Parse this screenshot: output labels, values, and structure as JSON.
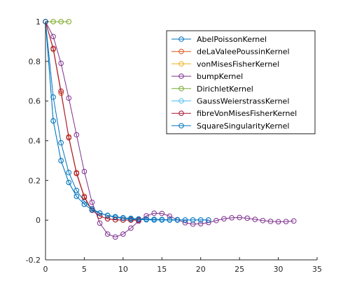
{
  "chart_data": {
    "type": "line",
    "title": "",
    "xlabel": "",
    "ylabel": "",
    "xlim": [
      0,
      35
    ],
    "ylim": [
      -0.2,
      1
    ],
    "xticks": [
      0,
      5,
      10,
      15,
      20,
      25,
      30,
      35
    ],
    "yticks": [
      -0.2,
      0,
      0.2,
      0.4,
      0.6,
      0.8,
      1
    ],
    "xtick_labels": [
      "0",
      "5",
      "10",
      "15",
      "20",
      "25",
      "30",
      "35"
    ],
    "ytick_labels": [
      "-0.2",
      "0",
      "0.2",
      "0.4",
      "0.6",
      "0.8",
      "1"
    ],
    "grid": false,
    "legend_position": "top-right",
    "marker": "open-circle",
    "series": [
      {
        "name": "AbelPoissonKernel",
        "color": "#0072bd",
        "x": [
          0,
          1,
          2,
          3,
          4,
          5,
          6,
          7,
          8,
          9,
          10,
          11,
          12,
          13,
          14,
          15,
          16,
          17
        ],
        "y": [
          1,
          0.62,
          0.39,
          0.24,
          0.15,
          0.095,
          0.058,
          0.036,
          0.023,
          0.014,
          0.009,
          0.005,
          0.003,
          0.002,
          0.001,
          0.001,
          0.0005,
          0.0003
        ]
      },
      {
        "name": "deLaValeePoussinKernel",
        "color": "#d95319",
        "x": [
          0,
          1,
          2,
          3,
          4,
          5,
          6,
          7,
          8,
          9,
          10,
          11,
          12
        ],
        "y": [
          1,
          0.86,
          0.64,
          0.42,
          0.24,
          0.12,
          0.05,
          0.02,
          0.007,
          0.002,
          0.0007,
          0.0002,
          0.0001
        ]
      },
      {
        "name": "vonMisesFisherKernel",
        "color": "#edb120",
        "x": [
          0,
          1,
          2,
          3
        ],
        "y": [
          1,
          1,
          1,
          1
        ]
      },
      {
        "name": "bumpKernel",
        "color": "#7e2f8e",
        "x": [
          0,
          1,
          2,
          3,
          4,
          5,
          6,
          7,
          8,
          9,
          10,
          11,
          12,
          13,
          14,
          15,
          16,
          17,
          18,
          19,
          20,
          21,
          22,
          23,
          24,
          25,
          26,
          27,
          28,
          29,
          30,
          31,
          32
        ],
        "y": [
          1,
          0.925,
          0.79,
          0.615,
          0.43,
          0.245,
          0.09,
          -0.015,
          -0.07,
          -0.085,
          -0.07,
          -0.04,
          -0.005,
          0.022,
          0.035,
          0.034,
          0.02,
          0.002,
          -0.013,
          -0.02,
          -0.018,
          -0.012,
          -0.002,
          0.007,
          0.012,
          0.013,
          0.01,
          0.004,
          -0.002,
          -0.006,
          -0.008,
          -0.007,
          -0.004
        ]
      },
      {
        "name": "DirichletKernel",
        "color": "#77ac30",
        "x": [
          0,
          1,
          2,
          3
        ],
        "y": [
          1,
          1,
          1,
          1
        ]
      },
      {
        "name": "GaussWeierstrassKernel",
        "color": "#4dbeee",
        "x": [
          0,
          1,
          2,
          3,
          4,
          5,
          6,
          7,
          8,
          9,
          10,
          11,
          12,
          13,
          14,
          15,
          16,
          17,
          18,
          19,
          20,
          21
        ],
        "y": [
          1,
          0.5,
          0.3,
          0.19,
          0.12,
          0.08,
          0.052,
          0.035,
          0.024,
          0.017,
          0.012,
          0.009,
          0.006,
          0.005,
          0.004,
          0.003,
          0.002,
          0.002,
          0.001,
          0.001,
          0.001,
          0.001
        ]
      },
      {
        "name": "fibreVonMisesFisherKernel",
        "color": "#a2142f",
        "x": [
          0,
          1,
          2,
          3,
          4,
          5,
          6,
          7,
          8,
          9,
          10,
          11,
          12
        ],
        "y": [
          1,
          0.865,
          0.65,
          0.415,
          0.235,
          0.115,
          0.05,
          0.02,
          0.007,
          0.002,
          0.0007,
          0.0002,
          0.0001
        ]
      },
      {
        "name": "SquareSingularityKernel",
        "color": "#0072bd",
        "x": [
          0,
          1,
          2,
          3,
          4,
          5,
          6,
          7,
          8,
          9,
          10,
          11,
          12,
          13,
          14,
          15,
          16,
          17,
          18,
          19,
          20,
          21
        ],
        "y": [
          1,
          0.5,
          0.3,
          0.19,
          0.12,
          0.08,
          0.052,
          0.035,
          0.024,
          0.017,
          0.012,
          0.009,
          0.006,
          0.005,
          0.004,
          0.003,
          0.002,
          0.002,
          0.001,
          0.001,
          0.001,
          0.001
        ]
      }
    ]
  }
}
